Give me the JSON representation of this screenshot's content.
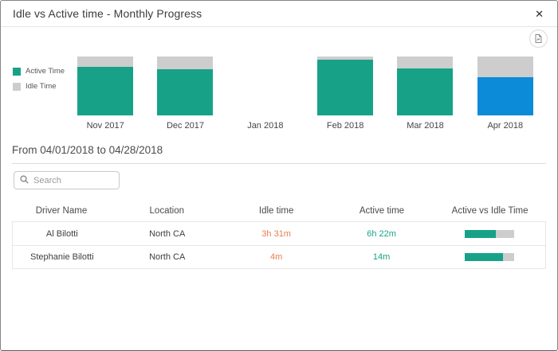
{
  "dialog": {
    "title": "Idle vs Active time - Monthly Progress",
    "close_glyph": "✕"
  },
  "toolbar": {
    "export_icon": "export-report-icon"
  },
  "chart_data": {
    "type": "bar",
    "stacked": true,
    "normalized_percent": true,
    "title": "Idle vs Active time - Monthly Progress",
    "legend_position": "left",
    "categories": [
      "Nov 2017",
      "Dec 2017",
      "Jan 2018",
      "Feb 2018",
      "Mar 2018",
      "Apr 2018"
    ],
    "series": [
      {
        "name": "Active Time",
        "values": [
          83,
          79,
          null,
          94,
          80,
          65
        ]
      },
      {
        "name": "Idle Time",
        "values": [
          17,
          21,
          null,
          6,
          20,
          35
        ]
      }
    ],
    "months": [
      {
        "label": "Nov 2017",
        "active": 83,
        "idle": 17,
        "selected": false
      },
      {
        "label": "Dec 2017",
        "active": 79,
        "idle": 21,
        "selected": false
      },
      {
        "label": "Jan 2018",
        "active": null,
        "idle": null,
        "selected": false
      },
      {
        "label": "Feb 2018",
        "active": 94,
        "idle": 6,
        "selected": false
      },
      {
        "label": "Mar 2018",
        "active": 80,
        "idle": 20,
        "selected": false
      },
      {
        "label": "Apr 2018",
        "active": 65,
        "idle": 35,
        "selected": true
      }
    ],
    "highlighted_category": "Apr 2018",
    "colors": {
      "active": "#17a288",
      "idle": "#cdcdcd",
      "active_selected": "#0c8bd8"
    }
  },
  "period": {
    "label": "From 04/01/2018 to 04/28/2018"
  },
  "search": {
    "placeholder": "Search"
  },
  "table": {
    "columns": [
      "Driver Name",
      "Location",
      "Idle time",
      "Active time",
      "Active vs Idle Time"
    ],
    "rows": [
      {
        "driver": "Al Bilotti",
        "location": "North CA",
        "idle": "3h 31m",
        "active": "6h 22m",
        "active_pct": 64
      },
      {
        "driver": "Stephanie Bilotti",
        "location": "North CA",
        "idle": "4m",
        "active": "14m",
        "active_pct": 77
      }
    ]
  }
}
